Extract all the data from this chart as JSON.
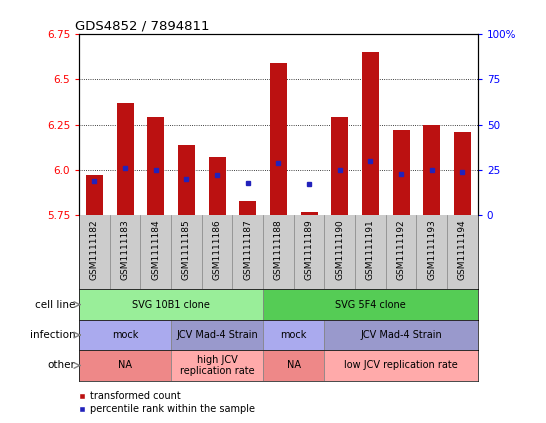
{
  "title": "GDS4852 / 7894811",
  "samples": [
    "GSM1111182",
    "GSM1111183",
    "GSM1111184",
    "GSM1111185",
    "GSM1111186",
    "GSM1111187",
    "GSM1111188",
    "GSM1111189",
    "GSM1111190",
    "GSM1111191",
    "GSM1111192",
    "GSM1111193",
    "GSM1111194"
  ],
  "red_values": [
    5.97,
    6.37,
    6.29,
    6.14,
    6.07,
    5.83,
    6.59,
    5.77,
    6.29,
    6.65,
    6.22,
    6.25,
    6.21
  ],
  "blue_pct": [
    19,
    26,
    25,
    20,
    22,
    18,
    29,
    17,
    25,
    30,
    23,
    25,
    24
  ],
  "ymin": 5.75,
  "ymax": 6.75,
  "yticks": [
    5.75,
    6.0,
    6.25,
    6.5,
    6.75
  ],
  "y2ticks": [
    0,
    25,
    50,
    75,
    100
  ],
  "y2labels": [
    "0",
    "25",
    "50",
    "75",
    "100%"
  ],
  "bar_color": "#BB1111",
  "dot_color": "#2222BB",
  "col_bg_color": "#CCCCCC",
  "plot_bg_color": "#FFFFFF",
  "cell_line_groups": [
    {
      "label": "SVG 10B1 clone",
      "start": 0,
      "end": 6,
      "color": "#99EE99"
    },
    {
      "label": "SVG 5F4 clone",
      "start": 6,
      "end": 13,
      "color": "#55CC55"
    }
  ],
  "infection_groups": [
    {
      "label": "mock",
      "start": 0,
      "end": 3,
      "color": "#AAAAEE"
    },
    {
      "label": "JCV Mad-4 Strain",
      "start": 3,
      "end": 6,
      "color": "#9999CC"
    },
    {
      "label": "mock",
      "start": 6,
      "end": 8,
      "color": "#AAAAEE"
    },
    {
      "label": "JCV Mad-4 Strain",
      "start": 8,
      "end": 13,
      "color": "#9999CC"
    }
  ],
  "other_groups": [
    {
      "label": "NA",
      "start": 0,
      "end": 3,
      "color": "#EE8888"
    },
    {
      "label": "high JCV\nreplication rate",
      "start": 3,
      "end": 6,
      "color": "#FFAAAA"
    },
    {
      "label": "NA",
      "start": 6,
      "end": 8,
      "color": "#EE8888"
    },
    {
      "label": "low JCV replication rate",
      "start": 8,
      "end": 13,
      "color": "#FFAAAA"
    }
  ],
  "row_labels": [
    "cell line",
    "infection",
    "other"
  ],
  "legend_items": [
    "transformed count",
    "percentile rank within the sample"
  ]
}
